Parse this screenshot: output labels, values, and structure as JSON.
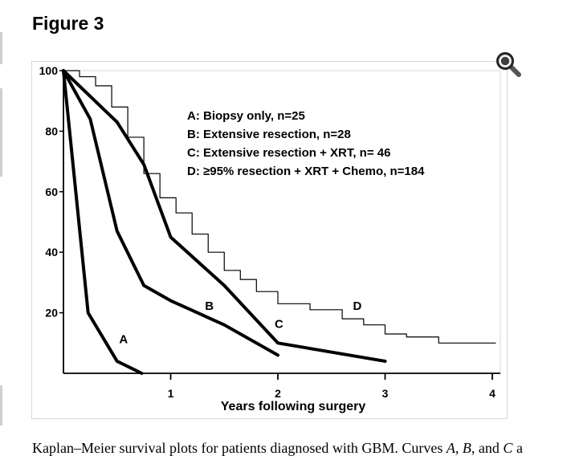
{
  "page": {
    "title": "Figure 3"
  },
  "zoom_button": {
    "icon": "magnifier-icon"
  },
  "caption": {
    "lead": "Kaplan–Meier survival plots for patients diagnosed with GBM. Curves ",
    "a": "A",
    "sep1": ", ",
    "b": "B",
    "sep2": ", and ",
    "c": "C",
    "tail": " a"
  },
  "chart_data": {
    "type": "line",
    "title": "",
    "xlabel": "Years following surgery",
    "ylabel": "",
    "xlim": [
      0,
      4.05
    ],
    "ylim": [
      0,
      100
    ],
    "x_ticks": [
      1,
      2,
      3,
      4
    ],
    "y_ticks": [
      20,
      40,
      60,
      80,
      100
    ],
    "x_tick_labels": [
      "1",
      "2",
      "3",
      "4"
    ],
    "y_tick_labels": [
      "20",
      "40",
      "60",
      "80",
      "100"
    ],
    "grid": false,
    "legend_position": "top-right",
    "legend": [
      "A: Biopsy only, n=25",
      "B: Extensive resection, n=28",
      "C: Extensive resection + XRT, n= 46",
      "D: ≥95% resection + XRT + Chemo, n=184"
    ],
    "series": [
      {
        "name": "A",
        "label": "A",
        "style": "bold",
        "x": [
          0,
          0.23,
          0.5,
          0.73
        ],
        "y": [
          100,
          20,
          4,
          0
        ]
      },
      {
        "name": "B",
        "label": "B",
        "style": "bold",
        "x": [
          0,
          0.25,
          0.5,
          0.75,
          1.0,
          1.5,
          2.0
        ],
        "y": [
          100,
          84,
          47,
          29,
          24,
          16,
          6
        ]
      },
      {
        "name": "C",
        "label": "C",
        "style": "bold",
        "x": [
          0,
          0.5,
          0.75,
          1.0,
          1.5,
          2.0,
          3.0
        ],
        "y": [
          100,
          83,
          69,
          45,
          29,
          10,
          4
        ]
      },
      {
        "name": "D",
        "label": "D",
        "style": "thin-step",
        "x": [
          0,
          0.15,
          0.3,
          0.45,
          0.6,
          0.75,
          0.9,
          1.05,
          1.2,
          1.35,
          1.5,
          1.65,
          1.8,
          2.0,
          2.3,
          2.6,
          2.8,
          3.0,
          3.2,
          3.5,
          4.03
        ],
        "y": [
          100,
          98,
          95,
          88,
          78,
          66,
          58,
          53,
          46,
          40,
          34,
          31,
          27,
          23,
          21,
          18,
          16,
          13,
          12,
          10,
          10
        ]
      }
    ],
    "curve_label_positions": {
      "A": [
        0.52,
        10
      ],
      "B": [
        1.32,
        21
      ],
      "C": [
        1.97,
        15
      ],
      "D": [
        2.7,
        21
      ]
    }
  }
}
